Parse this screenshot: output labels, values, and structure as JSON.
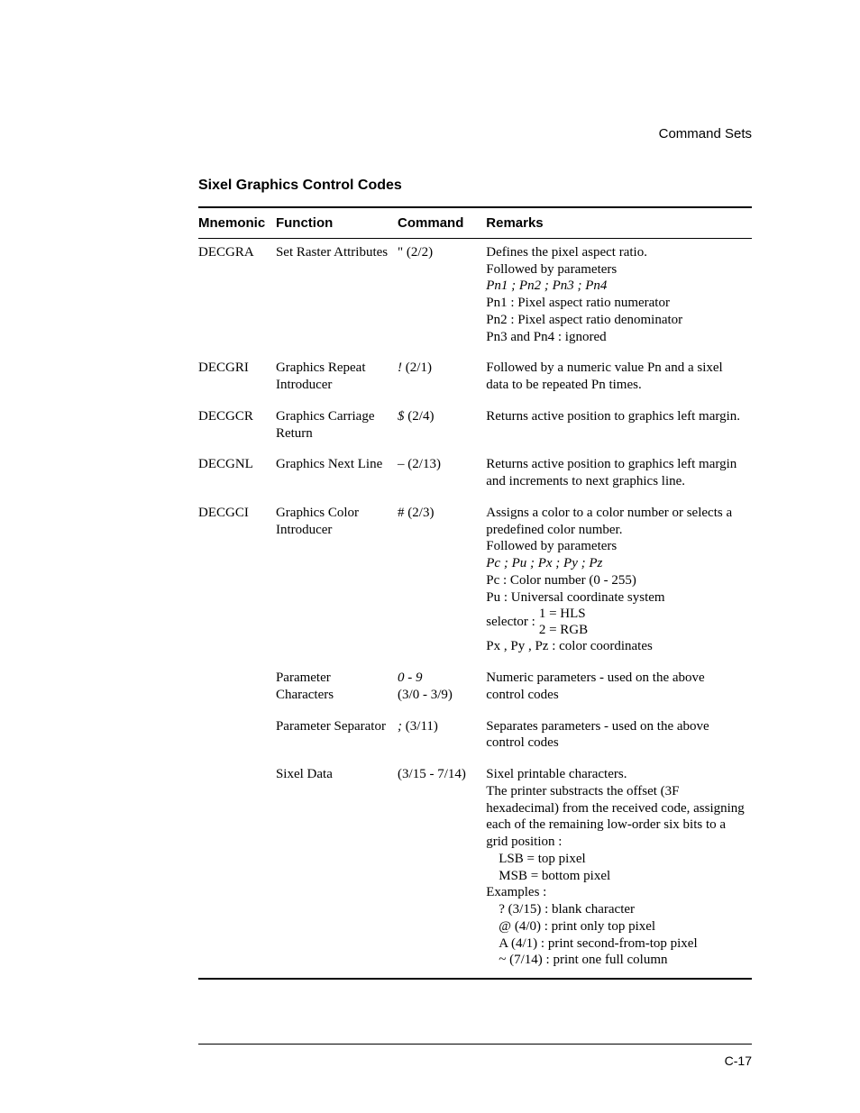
{
  "running_header": "Command Sets",
  "section_title": "Sixel Graphics Control Codes",
  "headers": {
    "mnemonic": "Mnemonic",
    "function": "Function",
    "command": "Command",
    "remarks": "Remarks"
  },
  "rows": {
    "decgra": {
      "mn": "DECGRA",
      "fn": "Set Raster Attributes",
      "cmd": "\" (2/2)",
      "rmk_line1": "Defines the pixel aspect ratio.",
      "rmk_line2": "Followed by parameters",
      "rmk_line3_italic": "Pn1 ; Pn2 ; Pn3 ; Pn4",
      "rmk_line4": "Pn1 : Pixel aspect ratio numerator",
      "rmk_line5": "Pn2 : Pixel aspect ratio denominator",
      "rmk_line6": "Pn3 and Pn4 : ignored"
    },
    "decgri": {
      "mn": "DECGRI",
      "fn": "Graphics Repeat Introducer",
      "cmd_italic": "!",
      "cmd_rest": " (2/1)",
      "rmk": "Followed by a numeric value Pn and a sixel data to be repeated Pn times."
    },
    "decgcr": {
      "mn": "DECGCR",
      "fn": "Graphics Carriage Return",
      "cmd_italic": "$",
      "cmd_rest": " (2/4)",
      "rmk": "Returns active position to graphics left margin."
    },
    "decgnl": {
      "mn": "DECGNL",
      "fn": "Graphics Next Line",
      "cmd": "– (2/13)",
      "rmk": "Returns active position to graphics left margin and increments to next graphics line."
    },
    "decgci": {
      "mn": "DECGCI",
      "fn": "Graphics Color Introducer",
      "cmd": "# (2/3)",
      "rmk_line1": "Assigns a color to a color number or selects a predefined color number.",
      "rmk_line2": "Followed by parameters",
      "rmk_line3_italic": "Pc ; Pu ; Px ; Py ; Pz",
      "rmk_line4": "Pc : Color number (0 - 255)",
      "rmk_line5": "Pu : Universal coordinate system",
      "rmk_selector_label": "selector : ",
      "rmk_selector_1": "1 = HLS",
      "rmk_selector_2": "2 = RGB",
      "rmk_line7": "Px , Py , Pz : color coordinates"
    },
    "paramchars": {
      "fn": "Parameter Characters",
      "cmd_italic": "0 - 9",
      "cmd_rest": "(3/0 - 3/9)",
      "rmk": "Numeric parameters - used on the above control codes"
    },
    "paramsep": {
      "fn": "Parameter Separator",
      "cmd_italic": ";",
      "cmd_rest": " (3/11)",
      "rmk": "Separates parameters - used on the above control codes"
    },
    "sixeldata": {
      "fn": "Sixel Data",
      "cmd": "(3/15 - 7/14)",
      "rmk_line1": "Sixel printable characters.",
      "rmk_line2": "The printer substracts the offset (3F hexadecimal) from the received code, assigning each of the remaining low-order six bits to a grid position :",
      "rmk_line3": "LSB = top pixel",
      "rmk_line4": "MSB = bottom pixel",
      "rmk_line5": "Examples :",
      "rmk_line6": "? (3/15) : blank character",
      "rmk_line7": "@ (4/0) : print only top pixel",
      "rmk_line8": "A (4/1) : print second-from-top pixel",
      "rmk_line9": "~ (7/14) : print one full column"
    }
  },
  "page_number": "C-17"
}
